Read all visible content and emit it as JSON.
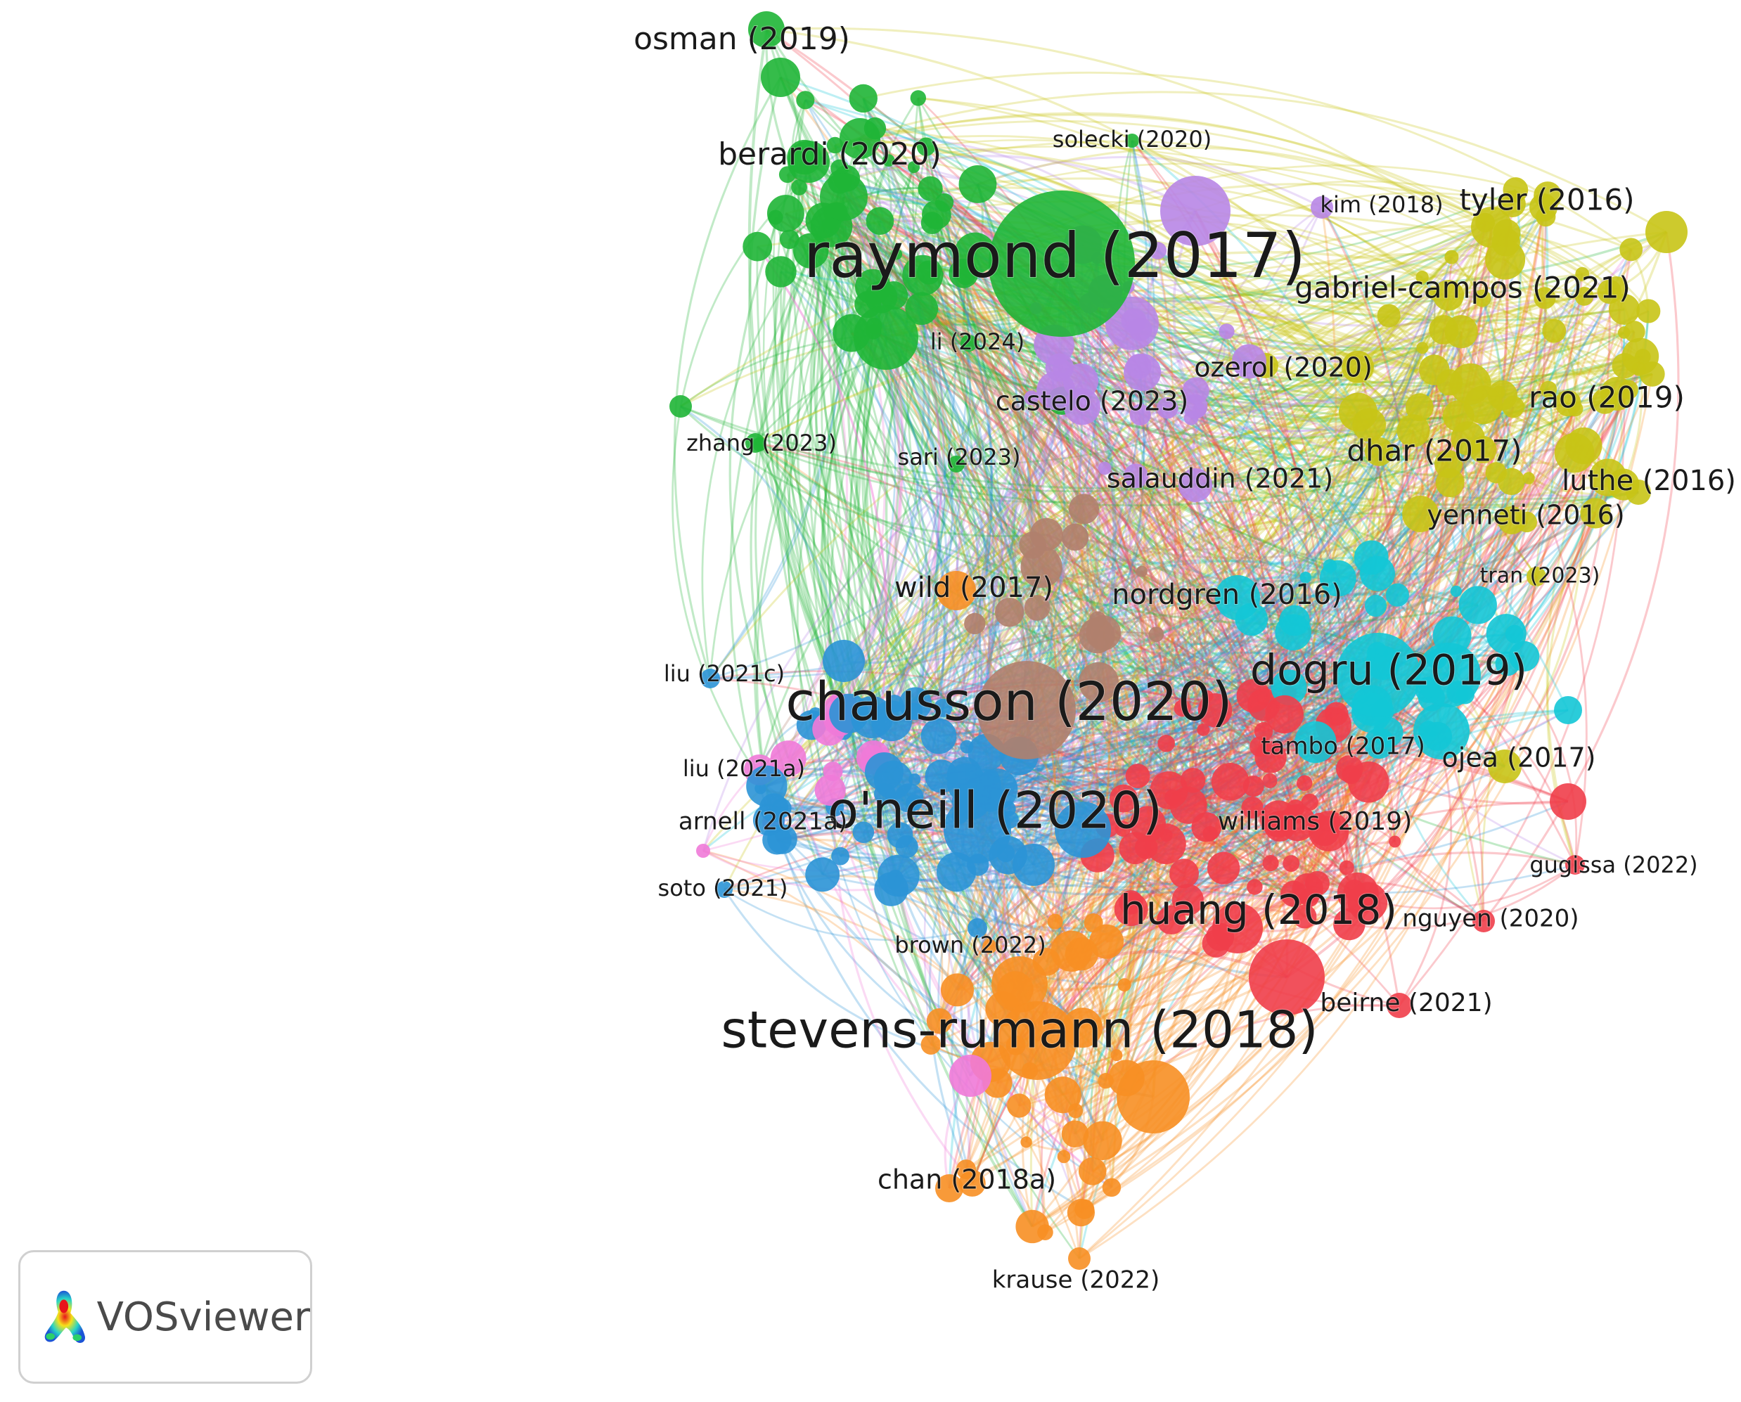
{
  "colors": {
    "red": "#f03e4a",
    "green": "#1fb536",
    "blue": "#2b93d6",
    "yellow": "#c8c416",
    "purple": "#b886e6",
    "cyan": "#13c6d6",
    "orange": "#f78f23",
    "brown": "#b07f6d",
    "pink": "#f07ad8"
  },
  "nodes": [
    {
      "label": "raymond (2017)",
      "color": "green",
      "size": 88
    },
    {
      "label": "chausson (2020)",
      "color": "brown",
      "size": 76
    },
    {
      "label": "o'neill (2020)",
      "color": "blue",
      "size": 72
    },
    {
      "label": "stevens-rumann (2018)",
      "color": "orange",
      "size": 72
    },
    {
      "label": "dogru (2019)",
      "color": "cyan",
      "size": 60
    },
    {
      "label": "huang (2018)",
      "color": "red",
      "size": 58
    },
    {
      "label": "berardi (2020)",
      "color": "green",
      "size": 44
    },
    {
      "label": "osman (2019)",
      "color": "green",
      "size": 44
    },
    {
      "label": "tyler (2016)",
      "color": "yellow",
      "size": 42
    },
    {
      "label": "gabriel-campos (2021)",
      "color": "yellow",
      "size": 42
    },
    {
      "label": "rao (2019)",
      "color": "yellow",
      "size": 42
    },
    {
      "label": "dhar (2017)",
      "color": "yellow",
      "size": 42
    },
    {
      "label": "luthe (2016)",
      "color": "yellow",
      "size": 40
    },
    {
      "label": "yenneti (2016)",
      "color": "yellow",
      "size": 38
    },
    {
      "label": "ozerol (2020)",
      "color": "yellow",
      "size": 38
    },
    {
      "label": "castelo (2023)",
      "color": "green",
      "size": 38
    },
    {
      "label": "salauddin (2021)",
      "color": "purple",
      "size": 38
    },
    {
      "label": "nordgren (2016)",
      "color": "cyan",
      "size": 40
    },
    {
      "label": "wild (2017)",
      "color": "orange",
      "size": 40
    },
    {
      "label": "ojea (2017)",
      "color": "yellow",
      "size": 38
    },
    {
      "label": "williams (2019)",
      "color": "red",
      "size": 36
    },
    {
      "label": "tambo (2017)",
      "color": "red",
      "size": 34
    },
    {
      "label": "beirne (2021)",
      "color": "red",
      "size": 36
    },
    {
      "label": "nguyen (2020)",
      "color": "red",
      "size": 34
    },
    {
      "label": "gugissa (2022)",
      "color": "red",
      "size": 32
    },
    {
      "label": "chan (2018a)",
      "color": "orange",
      "size": 38
    },
    {
      "label": "krause (2022)",
      "color": "orange",
      "size": 34
    },
    {
      "label": "brown (2022)",
      "color": "blue",
      "size": 32
    },
    {
      "label": "soto (2021)",
      "color": "blue",
      "size": 32
    },
    {
      "label": "arnell (2021a)",
      "color": "pink",
      "size": 34
    },
    {
      "label": "liu (2021a)",
      "color": "pink",
      "size": 32
    },
    {
      "label": "liu (2021c)",
      "color": "blue",
      "size": 32
    },
    {
      "label": "zhang (2023)",
      "color": "green",
      "size": 32
    },
    {
      "label": "sari (2023)",
      "color": "green",
      "size": 32
    },
    {
      "label": "li (2024)",
      "color": "green",
      "size": 32
    },
    {
      "label": "solecki (2020)",
      "color": "green",
      "size": 32
    },
    {
      "label": "kim (2018)",
      "color": "purple",
      "size": 32
    },
    {
      "label": "tran (2023)",
      "color": "yellow",
      "size": 30
    }
  ],
  "watermark": {
    "brand": "VOSviewer",
    "icon": "vosviewer-logo-icon"
  }
}
